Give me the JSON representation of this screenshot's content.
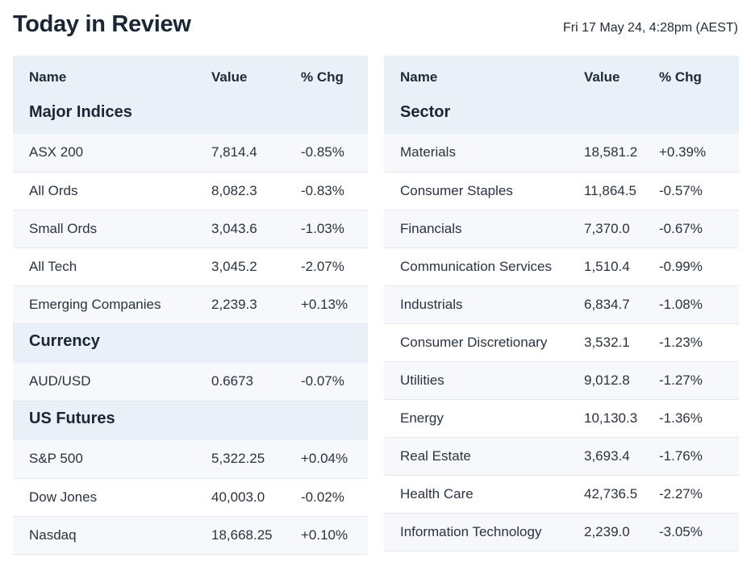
{
  "header": {
    "title": "Today in Review",
    "timestamp": "Fri 17 May 24, 4:28pm (AEST)"
  },
  "colors": {
    "positive": "#1e8a5a",
    "negative": "#e0362b",
    "header_bg": "#e9f0f8"
  },
  "left": {
    "columns": {
      "name": "Name",
      "value": "Value",
      "change": "% Chg"
    },
    "sections": [
      {
        "title": "Major Indices",
        "rows": [
          {
            "name": "ASX 200",
            "value": "7,814.4",
            "change": "-0.85%"
          },
          {
            "name": "All Ords",
            "value": "8,082.3",
            "change": "-0.83%"
          },
          {
            "name": "Small Ords",
            "value": "3,043.6",
            "change": "-1.03%"
          },
          {
            "name": "All Tech",
            "value": "3,045.2",
            "change": "-2.07%"
          },
          {
            "name": "Emerging Companies",
            "value": "2,239.3",
            "change": "+0.13%"
          }
        ]
      },
      {
        "title": "Currency",
        "rows": [
          {
            "name": "AUD/USD",
            "value": "0.6673",
            "change": "-0.07%"
          }
        ]
      },
      {
        "title": "US Futures",
        "rows": [
          {
            "name": "S&P 500",
            "value": "5,322.25",
            "change": "+0.04%"
          },
          {
            "name": "Dow Jones",
            "value": "40,003.0",
            "change": "-0.02%"
          },
          {
            "name": "Nasdaq",
            "value": "18,668.25",
            "change": "+0.10%"
          }
        ]
      }
    ]
  },
  "right": {
    "columns": {
      "name": "Name",
      "value": "Value",
      "change": "% Chg"
    },
    "sections": [
      {
        "title": "Sector",
        "rows": [
          {
            "name": "Materials",
            "value": "18,581.2",
            "change": "+0.39%"
          },
          {
            "name": "Consumer Staples",
            "value": "11,864.5",
            "change": "-0.57%"
          },
          {
            "name": "Financials",
            "value": "7,370.0",
            "change": "-0.67%"
          },
          {
            "name": "Communication Services",
            "value": "1,510.4",
            "change": "-0.99%"
          },
          {
            "name": "Industrials",
            "value": "6,834.7",
            "change": "-1.08%"
          },
          {
            "name": "Consumer Discretionary",
            "value": "3,532.1",
            "change": "-1.23%"
          },
          {
            "name": "Utilities",
            "value": "9,012.8",
            "change": "-1.27%"
          },
          {
            "name": "Energy",
            "value": "10,130.3",
            "change": "-1.36%"
          },
          {
            "name": "Real Estate",
            "value": "3,693.4",
            "change": "-1.76%"
          },
          {
            "name": "Health Care",
            "value": "42,736.5",
            "change": "-2.27%"
          },
          {
            "name": "Information Technology",
            "value": "2,239.0",
            "change": "-3.05%"
          }
        ]
      }
    ]
  }
}
